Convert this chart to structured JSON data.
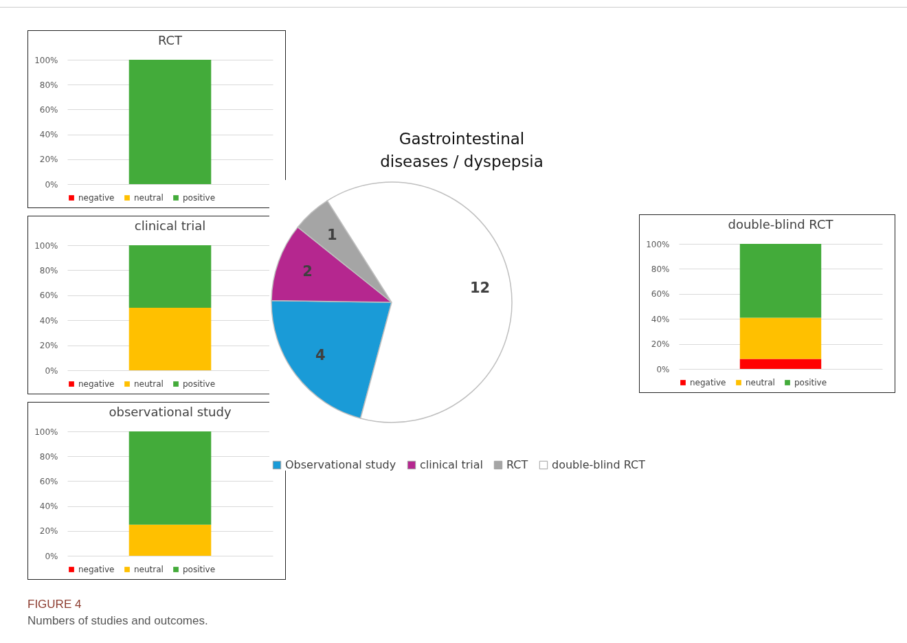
{
  "chart_data": [
    {
      "type": "bar",
      "title": "RCT",
      "categories": [
        null
      ],
      "stacked": true,
      "series": [
        {
          "name": "negative",
          "color": "#ff0000",
          "values": [
            0
          ]
        },
        {
          "name": "neutral",
          "color": "#ffc000",
          "values": [
            0
          ]
        },
        {
          "name": "positive",
          "color": "#43ab3a",
          "values": [
            100
          ]
        }
      ],
      "ylim": [
        0,
        100
      ],
      "yticks": [
        {
          "value": 0,
          "label": "0%"
        },
        {
          "value": 20,
          "label": "20%"
        },
        {
          "value": 40,
          "label": "40%"
        },
        {
          "value": 60,
          "label": "60%"
        },
        {
          "value": 80,
          "label": "80%"
        },
        {
          "value": 100,
          "label": "100%"
        }
      ],
      "grid": "y",
      "legend": "bottom",
      "tick_labels": "y"
    },
    {
      "type": "bar",
      "title": "clinical trial",
      "categories": [
        null
      ],
      "stacked": true,
      "series": [
        {
          "name": "negative",
          "color": "#ff0000",
          "values": [
            0
          ]
        },
        {
          "name": "neutral",
          "color": "#ffc000",
          "values": [
            50
          ]
        },
        {
          "name": "positive",
          "color": "#43ab3a",
          "values": [
            50
          ]
        }
      ],
      "ylim": [
        0,
        100
      ],
      "yticks": [
        {
          "value": 0,
          "label": "0%"
        },
        {
          "value": 20,
          "label": "20%"
        },
        {
          "value": 40,
          "label": "40%"
        },
        {
          "value": 60,
          "label": "60%"
        },
        {
          "value": 80,
          "label": "80%"
        },
        {
          "value": 100,
          "label": "100%"
        }
      ],
      "grid": "y",
      "legend": "bottom",
      "tick_labels": "y"
    },
    {
      "type": "bar",
      "title": "observational study",
      "categories": [
        null
      ],
      "stacked": true,
      "series": [
        {
          "name": "negative",
          "color": "#ff0000",
          "values": [
            0
          ]
        },
        {
          "name": "neutral",
          "color": "#ffc000",
          "values": [
            25
          ]
        },
        {
          "name": "positive",
          "color": "#43ab3a",
          "values": [
            75
          ]
        }
      ],
      "ylim": [
        0,
        100
      ],
      "yticks": [
        {
          "value": 0,
          "label": "0%"
        },
        {
          "value": 20,
          "label": "20%"
        },
        {
          "value": 40,
          "label": "40%"
        },
        {
          "value": 60,
          "label": "60%"
        },
        {
          "value": 80,
          "label": "80%"
        },
        {
          "value": 100,
          "label": "100%"
        }
      ],
      "grid": "y",
      "legend": "bottom",
      "tick_labels": "y"
    },
    {
      "type": "pie",
      "title": "Gastrointestinal diseases / dyspepsia",
      "categories": [
        "Observational study",
        "clinical trial",
        "RCT",
        "double-blind RCT"
      ],
      "values": [
        4,
        2,
        1,
        12
      ],
      "colors": [
        "#1a9bd7",
        "#b5278f",
        "#a5a5a5",
        "#ffffff"
      ],
      "data_labels": true,
      "legend": "bottom",
      "annotations": [
        "FIGURE 4",
        "Numbers of studies and outcomes."
      ]
    },
    {
      "type": "bar",
      "title": "double-blind RCT",
      "categories": [
        null
      ],
      "stacked": true,
      "series": [
        {
          "name": "negative",
          "color": "#ff0000",
          "values": [
            8
          ]
        },
        {
          "name": "neutral",
          "color": "#ffc000",
          "values": [
            33
          ]
        },
        {
          "name": "positive",
          "color": "#43ab3a",
          "values": [
            59
          ]
        }
      ],
      "ylim": [
        0,
        100
      ],
      "yticks": [
        {
          "value": 0,
          "label": "0%"
        },
        {
          "value": 20,
          "label": "20%"
        },
        {
          "value": 40,
          "label": "40%"
        },
        {
          "value": 60,
          "label": "60%"
        },
        {
          "value": 80,
          "label": "80%"
        },
        {
          "value": 100,
          "label": "100%"
        }
      ],
      "grid": "y",
      "legend": "bottom",
      "tick_labels": "y"
    }
  ]
}
